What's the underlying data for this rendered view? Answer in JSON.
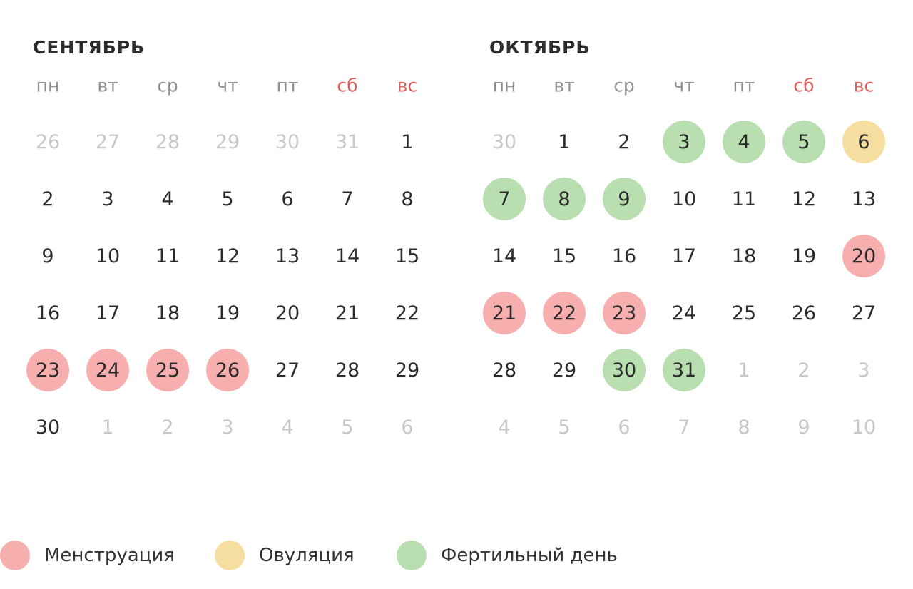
{
  "colors": {
    "menstruation": "#f7aeae",
    "ovulation": "#f5de9f",
    "fertile": "#b9dfb0",
    "weekend_text": "#e35a5a",
    "muted_text": "#c8c8c8"
  },
  "weekdays": [
    "пн",
    "вт",
    "ср",
    "чт",
    "пт",
    "сб",
    "вс"
  ],
  "months": [
    {
      "title": "СЕНТЯБРЬ",
      "weeks": [
        [
          {
            "d": "26",
            "t": "other"
          },
          {
            "d": "27",
            "t": "other"
          },
          {
            "d": "28",
            "t": "other"
          },
          {
            "d": "29",
            "t": "other"
          },
          {
            "d": "30",
            "t": "other"
          },
          {
            "d": "31",
            "t": "other"
          },
          {
            "d": "1",
            "t": ""
          }
        ],
        [
          {
            "d": "2",
            "t": ""
          },
          {
            "d": "3",
            "t": ""
          },
          {
            "d": "4",
            "t": ""
          },
          {
            "d": "5",
            "t": ""
          },
          {
            "d": "6",
            "t": ""
          },
          {
            "d": "7",
            "t": ""
          },
          {
            "d": "8",
            "t": ""
          }
        ],
        [
          {
            "d": "9",
            "t": ""
          },
          {
            "d": "10",
            "t": ""
          },
          {
            "d": "11",
            "t": ""
          },
          {
            "d": "12",
            "t": ""
          },
          {
            "d": "13",
            "t": ""
          },
          {
            "d": "14",
            "t": ""
          },
          {
            "d": "15",
            "t": ""
          }
        ],
        [
          {
            "d": "16",
            "t": ""
          },
          {
            "d": "17",
            "t": ""
          },
          {
            "d": "18",
            "t": ""
          },
          {
            "d": "19",
            "t": ""
          },
          {
            "d": "20",
            "t": ""
          },
          {
            "d": "21",
            "t": ""
          },
          {
            "d": "22",
            "t": ""
          }
        ],
        [
          {
            "d": "23",
            "t": "mens"
          },
          {
            "d": "24",
            "t": "mens"
          },
          {
            "d": "25",
            "t": "mens"
          },
          {
            "d": "26",
            "t": "mens"
          },
          {
            "d": "27",
            "t": ""
          },
          {
            "d": "28",
            "t": ""
          },
          {
            "d": "29",
            "t": ""
          }
        ],
        [
          {
            "d": "30",
            "t": ""
          },
          {
            "d": "1",
            "t": "other"
          },
          {
            "d": "2",
            "t": "other"
          },
          {
            "d": "3",
            "t": "other"
          },
          {
            "d": "4",
            "t": "other"
          },
          {
            "d": "5",
            "t": "other"
          },
          {
            "d": "6",
            "t": "other"
          }
        ]
      ]
    },
    {
      "title": "ОКТЯБРЬ",
      "weeks": [
        [
          {
            "d": "30",
            "t": "other"
          },
          {
            "d": "1",
            "t": ""
          },
          {
            "d": "2",
            "t": ""
          },
          {
            "d": "3",
            "t": "fert"
          },
          {
            "d": "4",
            "t": "fert"
          },
          {
            "d": "5",
            "t": "fert"
          },
          {
            "d": "6",
            "t": "ovul"
          }
        ],
        [
          {
            "d": "7",
            "t": "fert"
          },
          {
            "d": "8",
            "t": "fert"
          },
          {
            "d": "9",
            "t": "fert"
          },
          {
            "d": "10",
            "t": ""
          },
          {
            "d": "11",
            "t": ""
          },
          {
            "d": "12",
            "t": ""
          },
          {
            "d": "13",
            "t": ""
          }
        ],
        [
          {
            "d": "14",
            "t": ""
          },
          {
            "d": "15",
            "t": ""
          },
          {
            "d": "16",
            "t": ""
          },
          {
            "d": "17",
            "t": ""
          },
          {
            "d": "18",
            "t": ""
          },
          {
            "d": "19",
            "t": ""
          },
          {
            "d": "20",
            "t": "mens"
          }
        ],
        [
          {
            "d": "21",
            "t": "mens"
          },
          {
            "d": "22",
            "t": "mens"
          },
          {
            "d": "23",
            "t": "mens"
          },
          {
            "d": "24",
            "t": ""
          },
          {
            "d": "25",
            "t": ""
          },
          {
            "d": "26",
            "t": ""
          },
          {
            "d": "27",
            "t": ""
          }
        ],
        [
          {
            "d": "28",
            "t": ""
          },
          {
            "d": "29",
            "t": ""
          },
          {
            "d": "30",
            "t": "fert"
          },
          {
            "d": "31",
            "t": "fert"
          },
          {
            "d": "1",
            "t": "other"
          },
          {
            "d": "2",
            "t": "other"
          },
          {
            "d": "3",
            "t": "other"
          }
        ],
        [
          {
            "d": "4",
            "t": "other"
          },
          {
            "d": "5",
            "t": "other"
          },
          {
            "d": "6",
            "t": "other"
          },
          {
            "d": "7",
            "t": "other"
          },
          {
            "d": "8",
            "t": "other"
          },
          {
            "d": "9",
            "t": "other"
          },
          {
            "d": "10",
            "t": "other"
          }
        ]
      ]
    }
  ],
  "legend": [
    {
      "label": "Менструация",
      "type": "mens"
    },
    {
      "label": "Овуляция",
      "type": "ovul"
    },
    {
      "label": "Фертильный день",
      "type": "fert"
    }
  ]
}
